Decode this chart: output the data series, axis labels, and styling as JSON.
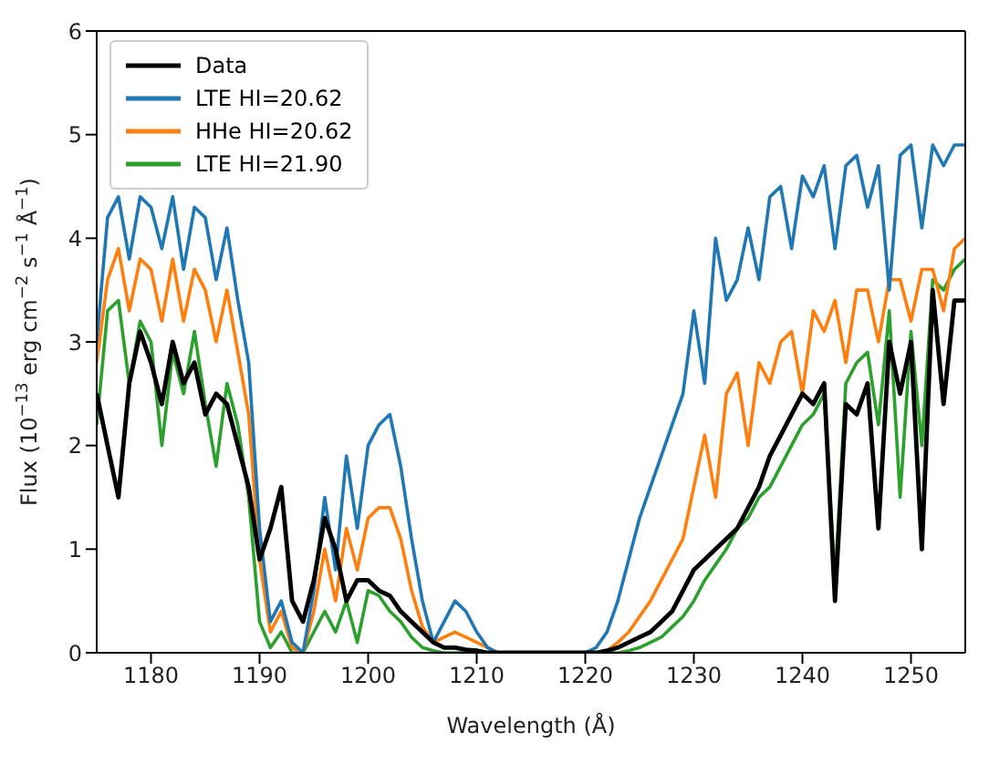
{
  "chart_data": {
    "type": "line",
    "xlabel": "Wavelength (Å)",
    "ylabel": "Flux (10$^{−13}$ erg cm$^{−2}$ s$^{−1}$ Å$^{−1}$)",
    "xlim": [
      1175,
      1255
    ],
    "ylim": [
      0,
      6
    ],
    "xticks": [
      1180,
      1190,
      1200,
      1210,
      1220,
      1230,
      1240,
      1250
    ],
    "yticks": [
      0,
      1,
      2,
      3,
      4,
      5,
      6
    ],
    "grid": false,
    "legend": "top left",
    "marker": "none",
    "line_style": "solid",
    "x": [
      1175,
      1176,
      1177,
      1178,
      1179,
      1180,
      1181,
      1182,
      1183,
      1184,
      1185,
      1186,
      1187,
      1188,
      1189,
      1190,
      1191,
      1192,
      1193,
      1194,
      1195,
      1196,
      1197,
      1198,
      1199,
      1200,
      1201,
      1202,
      1203,
      1204,
      1205,
      1206,
      1207,
      1208,
      1209,
      1210,
      1211,
      1212,
      1213,
      1214,
      1215,
      1216,
      1217,
      1218,
      1219,
      1220,
      1221,
      1222,
      1223,
      1224,
      1225,
      1226,
      1227,
      1228,
      1229,
      1230,
      1231,
      1232,
      1233,
      1234,
      1235,
      1236,
      1237,
      1238,
      1239,
      1240,
      1241,
      1242,
      1243,
      1244,
      1245,
      1246,
      1247,
      1248,
      1249,
      1250,
      1251,
      1252,
      1253,
      1254,
      1255
    ],
    "series": [
      {
        "name": "Data",
        "color": "#000000",
        "values": [
          2.5,
          2.0,
          1.5,
          2.6,
          3.1,
          2.8,
          2.4,
          3.0,
          2.6,
          2.8,
          2.3,
          2.5,
          2.4,
          2.0,
          1.6,
          0.9,
          1.2,
          1.6,
          0.5,
          0.3,
          0.7,
          1.3,
          1.0,
          0.5,
          0.7,
          0.7,
          0.6,
          0.55,
          0.4,
          0.3,
          0.2,
          0.1,
          0.05,
          0.05,
          0.03,
          0.02,
          0,
          0,
          0,
          0,
          0,
          0,
          0,
          0,
          0,
          0,
          0,
          0.02,
          0.05,
          0.1,
          0.15,
          0.2,
          0.3,
          0.4,
          0.6,
          0.8,
          0.9,
          1.0,
          1.1,
          1.2,
          1.4,
          1.6,
          1.9,
          2.1,
          2.3,
          2.5,
          2.4,
          2.6,
          0.5,
          2.4,
          2.3,
          2.6,
          1.2,
          3.0,
          2.5,
          3.0,
          1.0,
          3.5,
          2.4,
          3.4,
          3.4
        ]
      },
      {
        "name": "LTE HI=20.62",
        "color": "#1f77b4",
        "values": [
          3.0,
          4.2,
          4.4,
          3.8,
          4.4,
          4.3,
          3.9,
          4.4,
          3.7,
          4.3,
          4.2,
          3.6,
          4.1,
          3.4,
          2.8,
          1.2,
          0.3,
          0.5,
          0.1,
          0.0,
          0.6,
          1.5,
          0.8,
          1.9,
          1.2,
          2.0,
          2.2,
          2.3,
          1.8,
          1.1,
          0.5,
          0.1,
          0.3,
          0.5,
          0.4,
          0.2,
          0.05,
          0,
          0,
          0,
          0,
          0,
          0,
          0,
          0,
          0,
          0.05,
          0.2,
          0.5,
          0.9,
          1.3,
          1.6,
          1.9,
          2.2,
          2.5,
          3.3,
          2.6,
          4.0,
          3.4,
          3.6,
          4.1,
          3.6,
          4.4,
          4.5,
          3.9,
          4.6,
          4.4,
          4.7,
          3.9,
          4.7,
          4.8,
          4.3,
          4.7,
          3.5,
          4.8,
          4.9,
          4.1,
          4.9,
          4.7,
          4.9,
          4.9
        ]
      },
      {
        "name": "HHe HI=20.62",
        "color": "#ff7f0e",
        "values": [
          2.8,
          3.6,
          3.9,
          3.3,
          3.8,
          3.7,
          3.2,
          3.8,
          3.2,
          3.7,
          3.5,
          3.0,
          3.5,
          2.9,
          2.3,
          0.9,
          0.2,
          0.4,
          0.05,
          0,
          0.4,
          1.0,
          0.5,
          1.2,
          0.8,
          1.3,
          1.4,
          1.4,
          1.1,
          0.6,
          0.25,
          0.1,
          0.15,
          0.2,
          0.15,
          0.1,
          0.05,
          0,
          0,
          0,
          0,
          0,
          0,
          0,
          0,
          0,
          0,
          0.02,
          0.1,
          0.2,
          0.35,
          0.5,
          0.7,
          0.9,
          1.1,
          1.6,
          2.1,
          1.5,
          2.5,
          2.7,
          2.0,
          2.8,
          2.6,
          3.0,
          3.1,
          2.5,
          3.3,
          3.1,
          3.4,
          2.8,
          3.5,
          3.5,
          3.0,
          3.6,
          3.6,
          3.2,
          3.7,
          3.7,
          3.3,
          3.9,
          4.0
        ]
      },
      {
        "name": "LTE HI=21.90",
        "color": "#2ca02c",
        "values": [
          2.2,
          3.3,
          3.4,
          2.6,
          3.2,
          3.0,
          2.0,
          2.9,
          2.5,
          3.1,
          2.4,
          1.8,
          2.6,
          2.2,
          1.5,
          0.3,
          0.05,
          0.2,
          0,
          0,
          0.2,
          0.4,
          0.2,
          0.5,
          0.1,
          0.6,
          0.55,
          0.4,
          0.3,
          0.15,
          0.05,
          0.02,
          0,
          0,
          0,
          0,
          0,
          0,
          0,
          0,
          0,
          0,
          0,
          0,
          0,
          0,
          0,
          0,
          0.0,
          0.02,
          0.05,
          0.1,
          0.15,
          0.25,
          0.35,
          0.5,
          0.7,
          0.85,
          1.0,
          1.2,
          1.3,
          1.5,
          1.6,
          1.8,
          2.0,
          2.2,
          2.3,
          2.5,
          0.7,
          2.6,
          2.8,
          2.9,
          2.2,
          3.3,
          1.5,
          3.1,
          2.0,
          3.6,
          3.5,
          3.7,
          3.8
        ]
      }
    ]
  }
}
